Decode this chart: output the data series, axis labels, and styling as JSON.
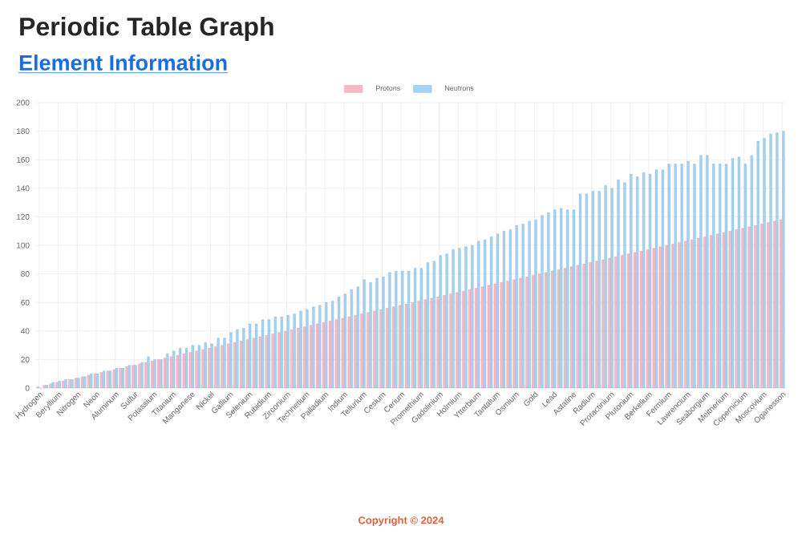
{
  "chart_data": {
    "type": "bar",
    "title": "Periodic Table Graph",
    "subtitle": "Element Information",
    "annotations": [
      "Copyright © 2024"
    ],
    "categories": [
      "Hydrogen",
      null,
      null,
      "Beryllium",
      null,
      null,
      "Nitrogen",
      null,
      null,
      "Neon",
      null,
      null,
      "Aluminum",
      null,
      null,
      "Sulfur",
      null,
      null,
      "Potassium",
      null,
      null,
      "Titanium",
      null,
      null,
      "Manganese",
      null,
      null,
      "Nickel",
      null,
      null,
      "Gallium",
      null,
      null,
      "Selenium",
      null,
      null,
      "Rubidium",
      null,
      null,
      "Zirconium",
      null,
      null,
      "Technetium",
      null,
      null,
      "Palladium",
      null,
      null,
      "Indium",
      null,
      null,
      "Tellurium",
      null,
      null,
      "Cesium",
      null,
      null,
      "Cerium",
      null,
      null,
      "Promethium",
      null,
      null,
      "Gadolinium",
      null,
      null,
      "Holmium",
      null,
      null,
      "Ytterbium",
      null,
      null,
      "Tantalum",
      null,
      null,
      "Osmium",
      null,
      null,
      "Gold",
      null,
      null,
      "Lead",
      null,
      null,
      "Astatine",
      null,
      null,
      "Radium",
      null,
      null,
      "Protactinium",
      null,
      null,
      "Plutonium",
      null,
      null,
      "Berkelium",
      null,
      null,
      "Fermium",
      null,
      null,
      "Lawrencium",
      null,
      null,
      "Seaborgium",
      null,
      null,
      "Meitnerium",
      null,
      null,
      "Copernicium",
      null,
      null,
      "Moscovium",
      null,
      null,
      "Oganesson"
    ],
    "series": [
      {
        "name": "Protons",
        "color": "#f7b9c6",
        "values": [
          1,
          2,
          3,
          4,
          5,
          6,
          7,
          8,
          9,
          10,
          11,
          12,
          13,
          14,
          15,
          16,
          17,
          18,
          19,
          20,
          21,
          22,
          23,
          24,
          25,
          26,
          27,
          28,
          29,
          30,
          31,
          32,
          33,
          34,
          35,
          36,
          37,
          38,
          39,
          40,
          41,
          42,
          43,
          44,
          45,
          46,
          47,
          48,
          49,
          50,
          51,
          52,
          53,
          54,
          55,
          56,
          57,
          58,
          59,
          60,
          61,
          62,
          63,
          64,
          65,
          66,
          67,
          68,
          69,
          70,
          71,
          72,
          73,
          74,
          75,
          76,
          77,
          78,
          79,
          80,
          81,
          82,
          83,
          84,
          85,
          86,
          87,
          88,
          89,
          90,
          91,
          92,
          93,
          94,
          95,
          96,
          97,
          98,
          99,
          100,
          101,
          102,
          103,
          104,
          105,
          106,
          107,
          108,
          109,
          110,
          111,
          112,
          113,
          114,
          115,
          116,
          117,
          118
        ]
      },
      {
        "name": "Neutrons",
        "color": "#a3d2f5",
        "values": [
          0,
          2,
          4,
          5,
          6,
          6,
          7,
          8,
          10,
          10,
          12,
          12,
          14,
          14,
          16,
          16,
          18,
          22,
          20,
          20,
          24,
          26,
          28,
          28,
          30,
          30,
          32,
          31,
          35,
          35,
          39,
          41,
          42,
          45,
          45,
          48,
          48,
          50,
          50,
          51,
          52,
          54,
          55,
          57,
          58,
          60,
          61,
          64,
          66,
          69,
          71,
          76,
          74,
          77,
          78,
          81,
          82,
          82,
          82,
          84,
          84,
          88,
          89,
          93,
          94,
          97,
          98,
          99,
          100,
          103,
          104,
          106,
          108,
          110,
          111,
          114,
          115,
          117,
          118,
          121,
          123,
          125,
          126,
          125,
          125,
          136,
          136,
          138,
          138,
          142,
          140,
          146,
          144,
          150,
          148,
          151,
          150,
          153,
          153,
          157,
          157,
          157,
          159,
          157,
          163,
          163,
          157,
          157,
          157,
          161,
          162,
          157,
          163,
          173,
          175,
          178,
          179,
          180
        ]
      }
    ],
    "ylim": [
      0,
      200
    ],
    "yticks": [
      0,
      20,
      40,
      60,
      80,
      100,
      120,
      140,
      160,
      180,
      200
    ],
    "grid": true,
    "legend": "top"
  }
}
